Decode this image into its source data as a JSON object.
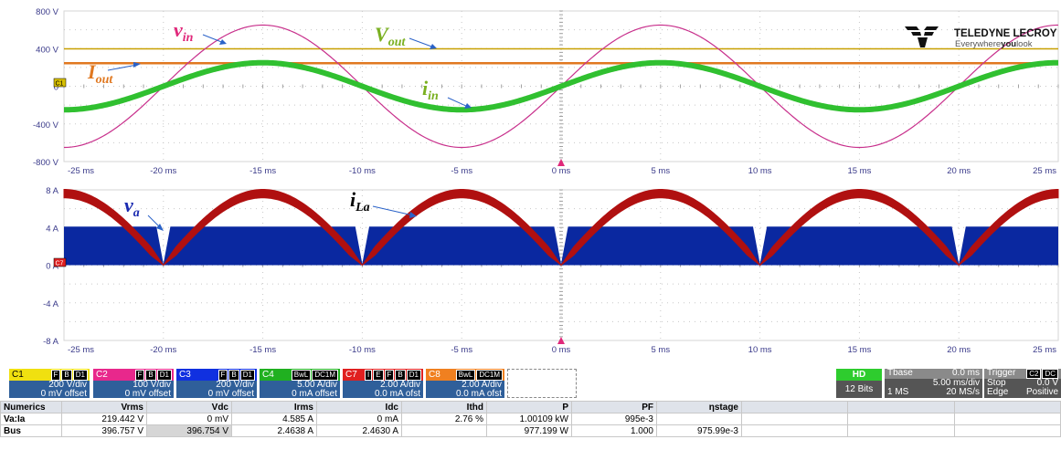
{
  "logo": {
    "brand": "TELEDYNE LECROY",
    "tagline_a": "Everywhere",
    "tagline_b": "you",
    "tagline_c": "look"
  },
  "panel1": {
    "y_ticks": [
      "800 V",
      "400 V",
      "0",
      "-400 V",
      "-800 V"
    ],
    "marker": "C1",
    "annotations": {
      "v_in": "v",
      "v_in_sub": "in",
      "V_out": "V",
      "V_out_sub": "out",
      "I_out": "I",
      "I_out_sub": "out",
      "i_in": "i",
      "i_in_sub": "in"
    }
  },
  "panel2": {
    "y_ticks": [
      "8 A",
      "4 A",
      "0 A",
      "-4 A",
      "-8 A"
    ],
    "marker": "C7",
    "annotations": {
      "v_a": "v",
      "v_a_sub": "a",
      "i_La": "i",
      "i_La_sub": "La"
    }
  },
  "x_ticks": [
    "-25 ms",
    "-20 ms",
    "-15 ms",
    "-10 ms",
    "-5 ms",
    "0 ms",
    "5 ms",
    "10 ms",
    "15 ms",
    "20 ms",
    "25 ms"
  ],
  "chart_data": [
    {
      "type": "line",
      "x_unit": "ms",
      "y_unit": "V",
      "xlim": [
        -25,
        25
      ],
      "ylim": [
        -800,
        800
      ],
      "series": [
        {
          "name": "v_in",
          "color": "#c8308c",
          "shape": "sine",
          "amplitude": 650,
          "period_ms": 20,
          "zero_cross_ms": -20
        },
        {
          "name": "i_in",
          "color": "#30c030",
          "shape": "sine",
          "amplitude": 250,
          "period_ms": 20,
          "zero_cross_ms": -20
        },
        {
          "name": "V_out",
          "color": "#c8a000",
          "shape": "flat",
          "level": 397
        },
        {
          "name": "I_out",
          "color": "#e07820",
          "shape": "flat",
          "level": 245
        }
      ],
      "grid": true
    },
    {
      "type": "area",
      "x_unit": "ms",
      "y_unit": "A",
      "xlim": [
        -25,
        25
      ],
      "ylim": [
        -8,
        8
      ],
      "series": [
        {
          "name": "v_a",
          "color": "#0a28a0",
          "shape": "band",
          "low": 0,
          "high": 4.1,
          "notch_ms": [
            -20,
            -10,
            0,
            10,
            20
          ]
        },
        {
          "name": "i_La",
          "color": "#b01010",
          "shape": "rectified-sine-band",
          "peak": 7.6,
          "thickness": 0.9,
          "period_ms": 10,
          "zero_ms": -20
        }
      ],
      "grid": true
    }
  ],
  "channels": [
    {
      "id": "C1",
      "badges": [
        "F",
        "B",
        "D1"
      ],
      "scale": "200 V/div",
      "offset": "0 mV offset",
      "color": "#f0e010",
      "fg": "#000000"
    },
    {
      "id": "C2",
      "badges": [
        "F",
        "B",
        "D1"
      ],
      "scale": "100 V/div",
      "offset": "0 mV offset",
      "color": "#e8288c",
      "fg": "#ffffff"
    },
    {
      "id": "C3",
      "badges": [
        "F",
        "B",
        "D1"
      ],
      "scale": "200 V/div",
      "offset": "0 mV offset",
      "color": "#1030e0",
      "fg": "#ffffff"
    },
    {
      "id": "C4",
      "badges": [
        "BwL",
        "DC1M"
      ],
      "scale": "5.00 A/div",
      "offset": "0 mA offset",
      "color": "#20b020",
      "fg": "#ffffff"
    },
    {
      "id": "C7",
      "badges": [
        "I",
        "E",
        "F",
        "B",
        "D1"
      ],
      "scale": "2.00 A/div",
      "offset": "0.0 mA ofst",
      "color": "#e02020",
      "fg": "#ffffff"
    },
    {
      "id": "C8",
      "badges": [
        "BwL",
        "DC1M"
      ],
      "scale": "2.00 A/div",
      "offset": "0.0 mA ofst",
      "color": "#f08020",
      "fg": "#ffffff"
    }
  ],
  "hd": {
    "label": "HD",
    "bits": "12 Bits"
  },
  "tbase": {
    "label": "Tbase",
    "delay": "0.0 ms",
    "per_div": "5.00 ms/div",
    "points": "1 MS",
    "rate": "20 MS/s"
  },
  "trigger": {
    "label": "Trigger",
    "badge_a": "C2",
    "badge_b": "DC",
    "level": "0.0 V",
    "mode": "Stop",
    "type": "Edge",
    "slope": "Positive"
  },
  "numerics": {
    "headers": [
      "Numerics",
      "Vrms",
      "Vdc",
      "Irms",
      "Idc",
      "Ithd",
      "P",
      "PF",
      "ηstage"
    ],
    "rows": [
      [
        "Va:Ia",
        "219.442 V",
        "0 mV",
        "4.585 A",
        "0 mA",
        "2.76 %",
        "1.00109 kW",
        "995e-3",
        ""
      ],
      [
        "Bus",
        "396.757 V",
        "396.754 V",
        "2.4638 A",
        "2.4630 A",
        "",
        "977.199 W",
        "1.000",
        "975.99e-3"
      ]
    ]
  }
}
